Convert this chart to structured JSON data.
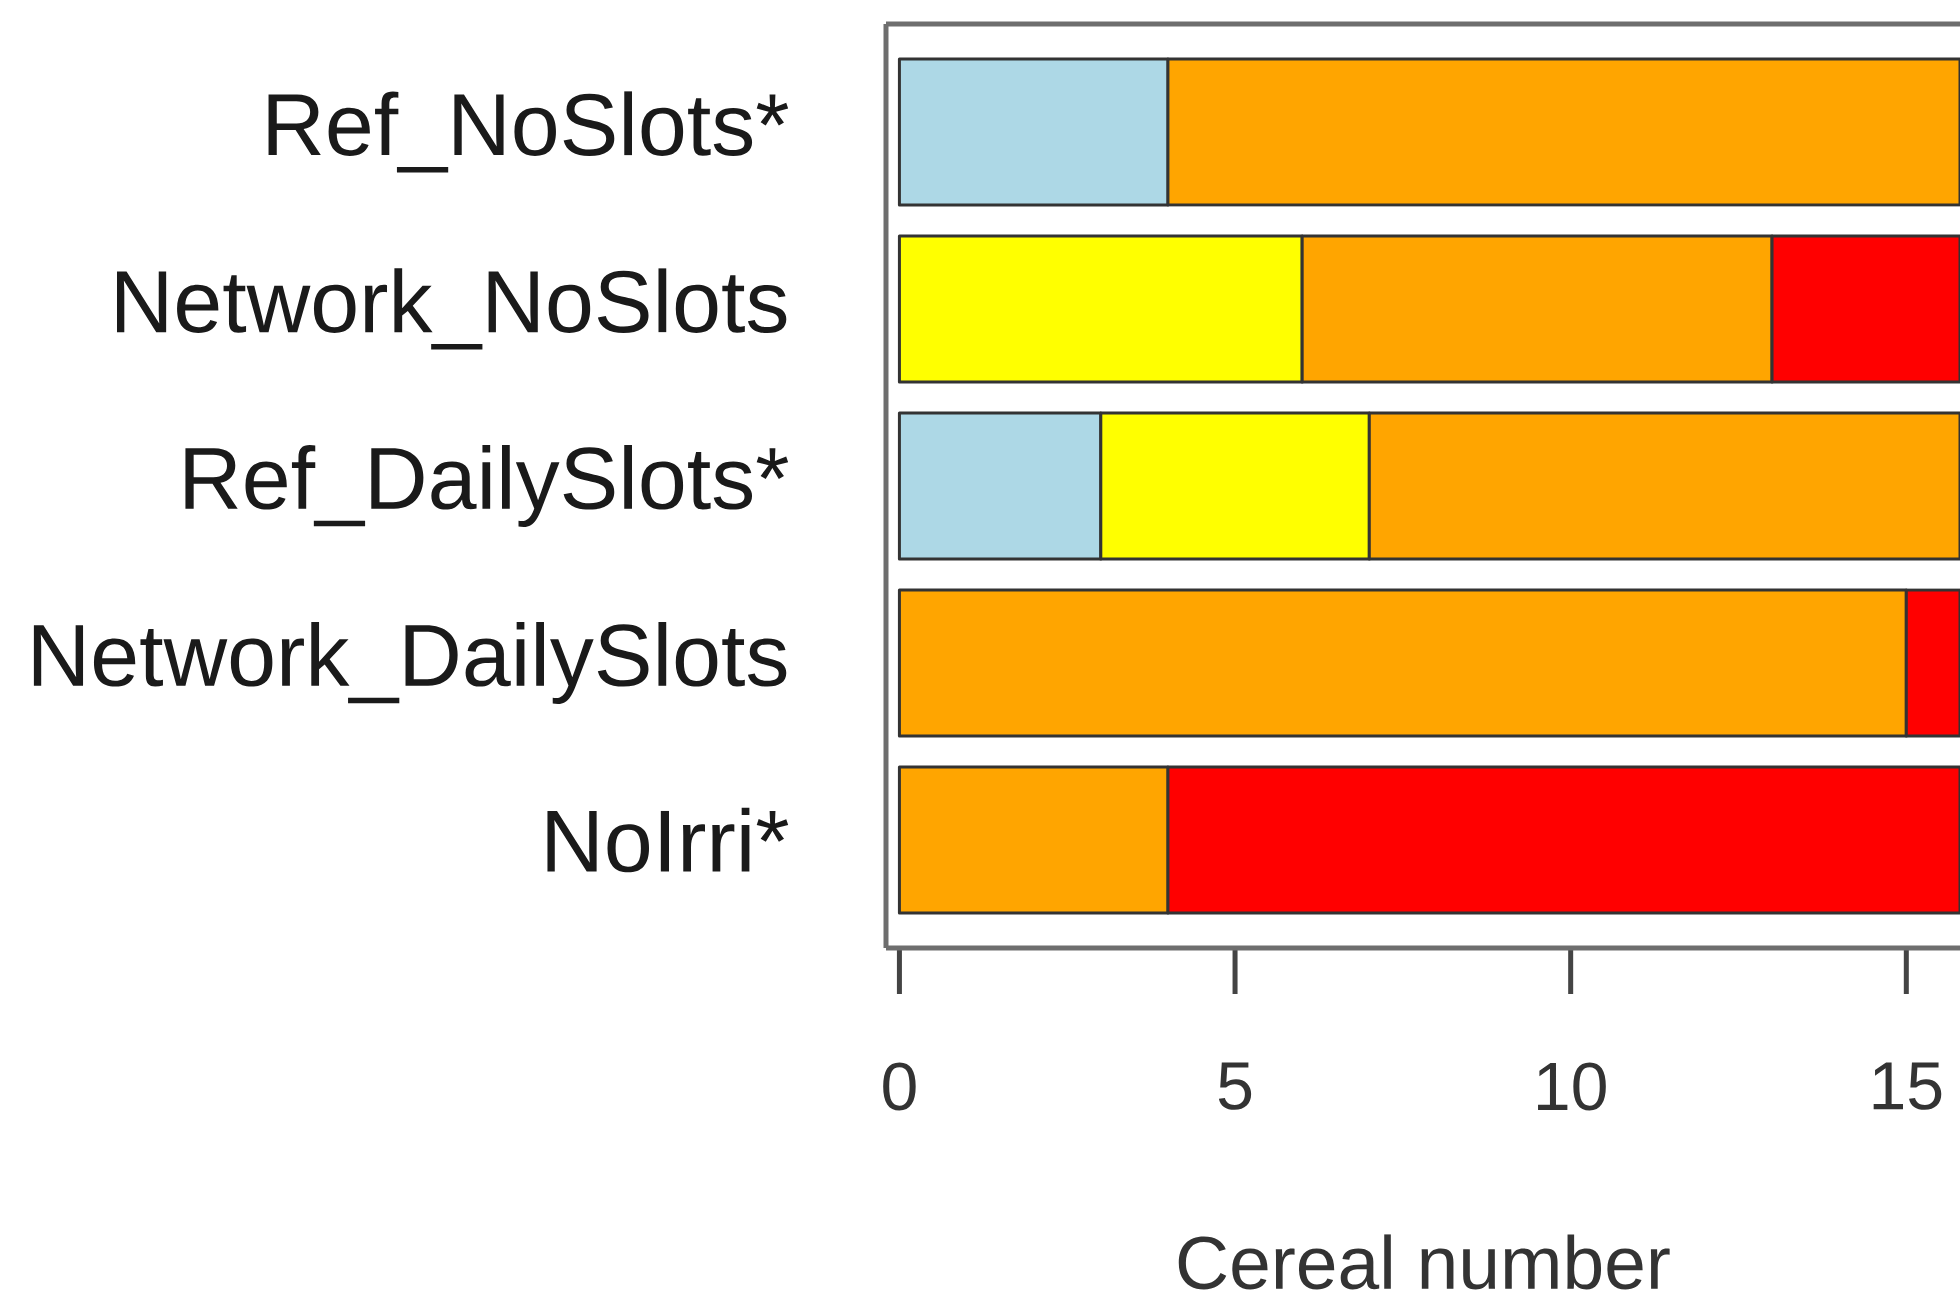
{
  "chart_data": {
    "type": "bar",
    "orientation": "horizontal",
    "stacked": true,
    "xlabel": "Cereal number",
    "categories": [
      "Ref_NoSlots*",
      "Network_NoSlots",
      "Ref_DailySlots*",
      "Network_DailySlots",
      "NoIrri*"
    ],
    "series": [
      {
        "color": "#add8e6",
        "values": [
          4,
          null,
          3,
          null,
          null
        ]
      },
      {
        "color": "#ffff00",
        "values": [
          null,
          6,
          4,
          null,
          null
        ]
      },
      {
        "color": "#ffa500",
        "values": [
          11.8,
          7,
          8.8,
          15,
          4
        ]
      },
      {
        "color": "#ff0000",
        "values": [
          null,
          2.8,
          null,
          0.8,
          11.8
        ]
      }
    ],
    "xlim": [
      -0.2,
      15.8
    ],
    "xticks": [
      0,
      5,
      10,
      15
    ]
  }
}
